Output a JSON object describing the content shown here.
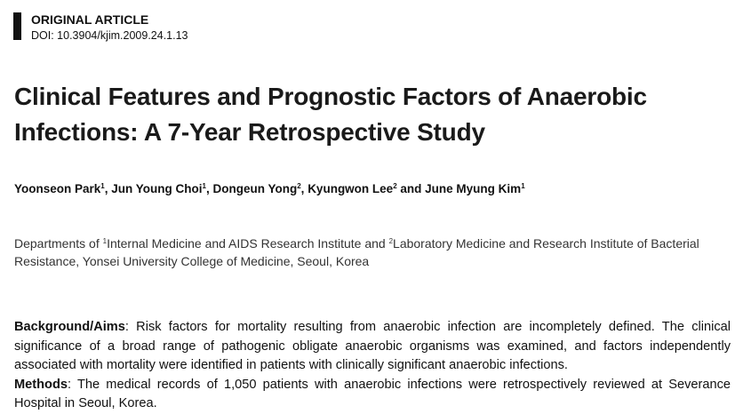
{
  "header": {
    "label": "ORIGINAL ARTICLE",
    "doi": "DOI: 10.3904/kjim.2009.24.1.13"
  },
  "title": [
    "Clinical Features and Prognostic Factors of Anaerobic",
    "Infections: A 7-Year Retrospective Study"
  ],
  "authors": [
    {
      "name": "Yoonseon Park",
      "sup": "1"
    },
    {
      "name": "Jun Young Choi",
      "sup": "1"
    },
    {
      "name": "Dongeun Yong",
      "sup": "2"
    },
    {
      "name": "Kyungwon Lee",
      "sup": "2"
    },
    {
      "name": "June Myung Kim",
      "sup": "1"
    }
  ],
  "author_connectors": [
    ", ",
    ", ",
    ", ",
    " and "
  ],
  "affiliation": [
    {
      "text": "Departments of "
    },
    {
      "sup": "1"
    },
    {
      "text": "Internal Medicine and AIDS Research Institute and "
    },
    {
      "sup": "2"
    },
    {
      "text": "Laboratory Medicine and Research Institute of Bacterial Resistance, Yonsei University College of Medicine, Seoul, Korea"
    }
  ],
  "abstract": [
    {
      "label": "Background/Aims",
      "text": ": Risk factors for mortality resulting from anaerobic infection are incompletely defined. The clinical significance of a broad range of pathogenic obligate anaerobic organisms was examined, and factors independently associated with mortality were identified in patients with clinically significant anaerobic infections."
    },
    {
      "label": "Methods",
      "text": ": The medical records of 1,050 patients with anaerobic infections were retrospectively reviewed at Severance Hospital in Seoul, Korea."
    }
  ]
}
